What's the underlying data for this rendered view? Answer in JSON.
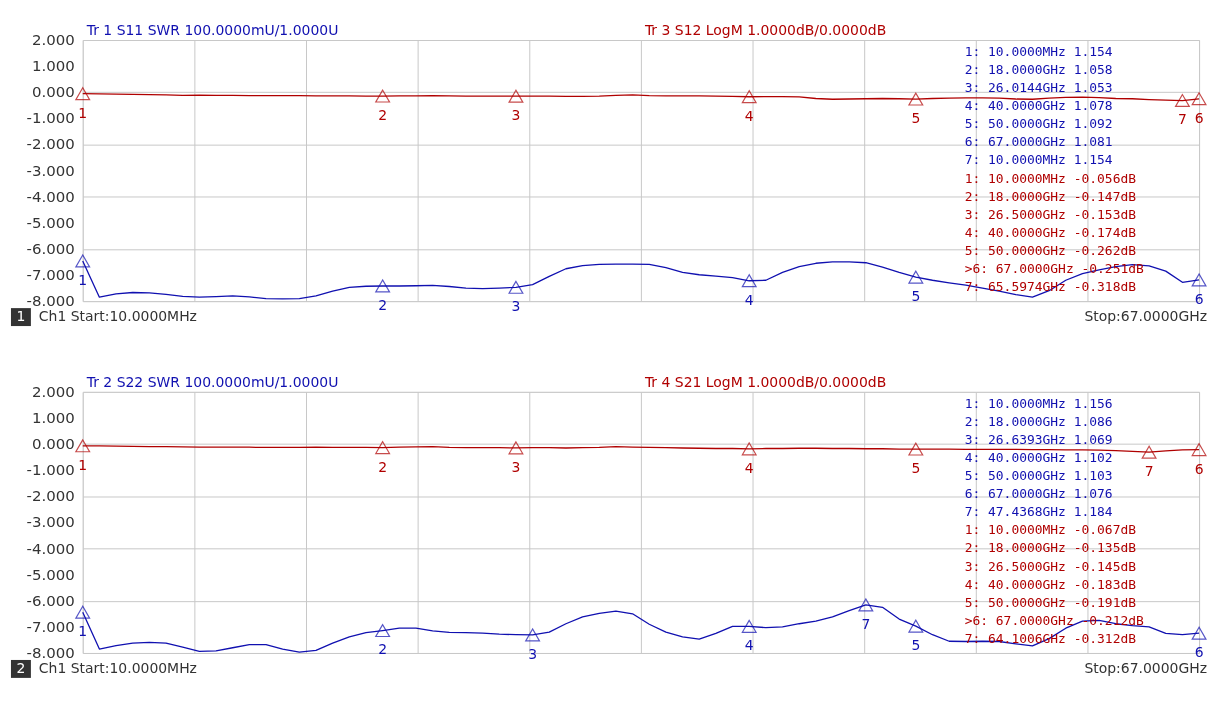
{
  "chart_data": [
    {
      "type": "line",
      "subtitle": "1",
      "xlabel": "Ch1  Start:10.0000MHz",
      "categories": [
        null,
        null,
        null,
        null,
        null,
        null,
        null,
        null,
        null,
        null,
        null,
        null,
        null,
        null,
        null,
        null,
        null,
        null,
        null,
        null,
        null,
        null,
        null,
        null,
        null,
        null,
        null,
        null,
        null,
        null,
        null,
        null,
        null,
        null,
        null,
        null,
        null,
        null,
        null,
        null,
        null,
        null,
        null,
        null,
        null,
        null,
        null,
        null,
        null,
        null,
        null,
        null,
        null,
        null,
        null,
        null,
        null,
        null,
        null,
        null,
        null,
        null,
        null,
        null,
        null,
        null,
        null,
        null
      ],
      "ylim": [
        -8,
        2
      ],
      "yticks": [
        {
          "value": 2,
          "label": "2.000"
        },
        {
          "value": 1,
          "label": "1.000"
        },
        {
          "value": 0,
          "label": "0.000"
        },
        {
          "value": -1,
          "label": "-1.000"
        },
        {
          "value": -2,
          "label": "-2.000"
        },
        {
          "value": -3,
          "label": "-3.000"
        },
        {
          "value": -4,
          "label": "-4.000"
        },
        {
          "value": -5,
          "label": "-5.000"
        },
        {
          "value": -6,
          "label": "-6.000"
        },
        {
          "value": -7,
          "label": "-7.000"
        },
        {
          "value": -8,
          "label": "-8.000"
        }
      ],
      "tick_labels": "y",
      "grid": true,
      "series": [
        {
          "name": "Tr 1  S11 SWR 100.0000mU/1.0000U",
          "color": "#1010b0",
          "values": [
            -6.46,
            -7.85,
            -7.72,
            -7.67,
            -7.68,
            -7.74,
            -7.82,
            -7.85,
            -7.83,
            -7.8,
            -7.84,
            -7.9,
            -7.91,
            -7.9,
            -7.8,
            -7.62,
            -7.47,
            -7.43,
            -7.42,
            -7.42,
            -7.41,
            -7.4,
            -7.44,
            -7.5,
            -7.52,
            -7.5,
            -7.47,
            -7.37,
            -7.05,
            -6.76,
            -6.64,
            -6.59,
            -6.58,
            -6.58,
            -6.59,
            -6.72,
            -6.9,
            -6.99,
            -7.04,
            -7.1,
            -7.22,
            -7.2,
            -6.9,
            -6.68,
            -6.55,
            -6.5,
            -6.5,
            -6.53,
            -6.7,
            -6.9,
            -7.08,
            -7.2,
            -7.3,
            -7.39,
            -7.5,
            -7.62,
            -7.75,
            -7.85,
            -7.6,
            -7.2,
            -6.95,
            -6.8,
            -6.68,
            -6.6,
            -6.65,
            -6.85,
            -7.28,
            -7.19
          ]
        },
        {
          "name": "Tr 3  S12 LogM 1.0000dB/0.0000dB",
          "color": "#b00000",
          "values": [
            -0.056,
            -0.06,
            -0.07,
            -0.08,
            -0.09,
            -0.1,
            -0.12,
            -0.11,
            -0.12,
            -0.12,
            -0.13,
            -0.13,
            -0.13,
            -0.13,
            -0.14,
            -0.14,
            -0.14,
            -0.15,
            -0.147,
            -0.14,
            -0.14,
            -0.13,
            -0.14,
            -0.15,
            -0.15,
            -0.15,
            -0.153,
            -0.15,
            -0.15,
            -0.16,
            -0.16,
            -0.15,
            -0.12,
            -0.1,
            -0.13,
            -0.14,
            -0.14,
            -0.14,
            -0.15,
            -0.16,
            -0.174,
            -0.17,
            -0.17,
            -0.18,
            -0.24,
            -0.27,
            -0.26,
            -0.25,
            -0.24,
            -0.25,
            -0.262,
            -0.24,
            -0.23,
            -0.22,
            -0.22,
            -0.23,
            -0.26,
            -0.27,
            -0.23,
            -0.2,
            -0.19,
            -0.21,
            -0.24,
            -0.25,
            -0.28,
            -0.3,
            -0.318,
            -0.251
          ]
        },
        {
          "type": "scatter",
          "marker": "triangle",
          "color": "#b00000",
          "values": [
            -0.056,
            null,
            null,
            null,
            null,
            null,
            null,
            null,
            null,
            null,
            null,
            null,
            null,
            null,
            null,
            null,
            null,
            null,
            -0.147,
            null,
            null,
            null,
            null,
            null,
            null,
            null,
            -0.153,
            null,
            null,
            null,
            null,
            null,
            null,
            null,
            null,
            null,
            null,
            null,
            null,
            null,
            -0.174,
            null,
            null,
            null,
            null,
            null,
            null,
            null,
            null,
            null,
            -0.262,
            null,
            null,
            null,
            null,
            null,
            null,
            null,
            null,
            null,
            null,
            null,
            null,
            null,
            null,
            null,
            -0.318,
            -0.251
          ]
        },
        {
          "type": "scatter",
          "marker": "triangle",
          "color": "#1010b0",
          "values": [
            -6.46,
            null,
            null,
            null,
            null,
            null,
            null,
            null,
            null,
            null,
            null,
            null,
            null,
            null,
            null,
            null,
            null,
            null,
            -7.42,
            null,
            null,
            null,
            null,
            null,
            null,
            null,
            -7.47,
            null,
            null,
            null,
            null,
            null,
            null,
            null,
            null,
            null,
            null,
            null,
            null,
            null,
            -7.22,
            null,
            null,
            null,
            null,
            null,
            null,
            null,
            null,
            null,
            -7.08,
            null,
            null,
            null,
            null,
            null,
            null,
            null,
            null,
            null,
            null,
            null,
            null,
            null,
            null,
            null,
            null,
            -7.19
          ]
        }
      ],
      "annotations": [
        "1:  10.0000MHz  1.154",
        "2:  18.0000GHz  1.058",
        "3:  26.0144GHz  1.053",
        "4:  40.0000GHz  1.078",
        "5:  50.0000GHz  1.092",
        "6:  67.0000GHz  1.081",
        "7:  10.0000MHz  1.154",
        "1:  10.0000MHz  -0.056dB",
        "2:  18.0000GHz  -0.147dB",
        "3:  26.5000GHz  -0.153dB",
        "4:  40.0000GHz  -0.174dB",
        "5:  50.0000GHz  -0.262dB",
        ">6:  67.0000GHz  -0.251dB",
        "7:  65.5974GHz  -0.318dB",
        "Stop:67.0000GHz",
        {
          "text": "1",
          "y": -0.056
        },
        {
          "text": "2",
          "y": -0.147
        },
        {
          "text": "3",
          "y": -0.153
        },
        {
          "text": "4",
          "y": -0.174
        },
        {
          "text": "5",
          "y": -0.262
        },
        {
          "text": "7",
          "y": -0.318
        },
        {
          "text": "6",
          "y": -0.251
        },
        {
          "text": "1",
          "y": -6.46
        },
        {
          "text": "2",
          "y": -7.42
        },
        {
          "text": "3",
          "y": -7.47
        },
        {
          "text": "4",
          "y": -7.22
        },
        {
          "text": "5",
          "y": -7.08
        },
        {
          "text": "6",
          "y": -7.19
        }
      ]
    },
    {
      "type": "line",
      "subtitle": "2",
      "xlabel": "Ch1  Start:10.0000MHz",
      "categories": [
        null,
        null,
        null,
        null,
        null,
        null,
        null,
        null,
        null,
        null,
        null,
        null,
        null,
        null,
        null,
        null,
        null,
        null,
        null,
        null,
        null,
        null,
        null,
        null,
        null,
        null,
        null,
        null,
        null,
        null,
        null,
        null,
        null,
        null,
        null,
        null,
        null,
        null,
        null,
        null,
        null,
        null,
        null,
        null,
        null,
        null,
        null,
        null,
        null,
        null,
        null,
        null,
        null,
        null,
        null,
        null,
        null,
        null,
        null,
        null,
        null,
        null,
        null,
        null,
        null,
        null,
        null,
        null
      ],
      "ylim": [
        -8,
        2
      ],
      "yticks": [
        {
          "value": 2,
          "label": "2.000"
        },
        {
          "value": 1,
          "label": "1.000"
        },
        {
          "value": 0,
          "label": "0.000"
        },
        {
          "value": -1,
          "label": "-1.000"
        },
        {
          "value": -2,
          "label": "-2.000"
        },
        {
          "value": -3,
          "label": "-3.000"
        },
        {
          "value": -4,
          "label": "-4.000"
        },
        {
          "value": -5,
          "label": "-5.000"
        },
        {
          "value": -6,
          "label": "-6.000"
        },
        {
          "value": -7,
          "label": "-7.000"
        },
        {
          "value": -8,
          "label": "-8.000"
        }
      ],
      "tick_labels": "y",
      "grid": true,
      "series": [
        {
          "name": "Tr 2  S22 SWR 100.0000mU/1.0000U",
          "color": "#1010b0",
          "values": [
            -6.44,
            -7.85,
            -7.72,
            -7.62,
            -7.59,
            -7.62,
            -7.78,
            -7.94,
            -7.92,
            -7.8,
            -7.68,
            -7.68,
            -7.85,
            -7.97,
            -7.9,
            -7.62,
            -7.38,
            -7.22,
            -7.14,
            -7.05,
            -7.05,
            -7.15,
            -7.21,
            -7.22,
            -7.24,
            -7.28,
            -7.3,
            -7.31,
            -7.2,
            -6.88,
            -6.62,
            -6.48,
            -6.4,
            -6.5,
            -6.9,
            -7.2,
            -7.38,
            -7.47,
            -7.25,
            -6.98,
            -6.98,
            -7.03,
            -7.0,
            -6.88,
            -6.78,
            -6.62,
            -6.38,
            -6.16,
            -6.25,
            -6.7,
            -6.97,
            -7.3,
            -7.55,
            -7.56,
            -7.55,
            -7.56,
            -7.65,
            -7.73,
            -7.45,
            -7.05,
            -6.78,
            -6.75,
            -6.88,
            -6.95,
            -7.0,
            -7.25,
            -7.3,
            -7.24
          ]
        },
        {
          "name": "Tr 4  S21 LogM 1.0000dB/0.0000dB",
          "color": "#b00000",
          "values": [
            -0.067,
            -0.07,
            -0.08,
            -0.09,
            -0.1,
            -0.1,
            -0.11,
            -0.12,
            -0.12,
            -0.12,
            -0.12,
            -0.13,
            -0.13,
            -0.13,
            -0.12,
            -0.13,
            -0.13,
            -0.13,
            -0.135,
            -0.12,
            -0.11,
            -0.1,
            -0.13,
            -0.14,
            -0.14,
            -0.14,
            -0.145,
            -0.14,
            -0.14,
            -0.15,
            -0.14,
            -0.13,
            -0.1,
            -0.12,
            -0.13,
            -0.14,
            -0.15,
            -0.16,
            -0.17,
            -0.17,
            -0.183,
            -0.17,
            -0.17,
            -0.16,
            -0.16,
            -0.17,
            -0.17,
            -0.18,
            -0.18,
            -0.19,
            -0.191,
            -0.19,
            -0.19,
            -0.2,
            -0.2,
            -0.2,
            -0.2,
            -0.21,
            -0.21,
            -0.22,
            -0.22,
            -0.23,
            -0.25,
            -0.28,
            -0.312,
            -0.26,
            -0.22,
            -0.212
          ]
        },
        {
          "type": "scatter",
          "marker": "triangle",
          "color": "#b00000",
          "values": [
            -0.067,
            null,
            null,
            null,
            null,
            null,
            null,
            null,
            null,
            null,
            null,
            null,
            null,
            null,
            null,
            null,
            null,
            null,
            -0.135,
            null,
            null,
            null,
            null,
            null,
            null,
            null,
            -0.145,
            null,
            null,
            null,
            null,
            null,
            null,
            null,
            null,
            null,
            null,
            null,
            null,
            null,
            -0.183,
            null,
            null,
            null,
            null,
            null,
            null,
            null,
            null,
            null,
            -0.191,
            null,
            null,
            null,
            null,
            null,
            null,
            null,
            null,
            null,
            null,
            null,
            null,
            null,
            -0.312,
            null,
            null,
            -0.212
          ]
        },
        {
          "type": "scatter",
          "marker": "triangle",
          "color": "#1010b0",
          "values": [
            -6.44,
            null,
            null,
            null,
            null,
            null,
            null,
            null,
            null,
            null,
            null,
            null,
            null,
            null,
            null,
            null,
            null,
            null,
            -7.14,
            null,
            null,
            null,
            null,
            null,
            null,
            null,
            null,
            -7.31,
            null,
            null,
            null,
            null,
            null,
            null,
            null,
            null,
            null,
            null,
            null,
            null,
            -6.98,
            null,
            null,
            null,
            null,
            null,
            null,
            -6.16,
            null,
            null,
            -6.97,
            null,
            null,
            null,
            null,
            null,
            null,
            null,
            null,
            null,
            null,
            null,
            null,
            null,
            null,
            null,
            null,
            -7.24
          ]
        }
      ],
      "annotations": [
        "1:  10.0000MHz  1.156",
        "2:  18.0000GHz  1.086",
        "3:  26.6393GHz  1.069",
        "4:  40.0000GHz  1.102",
        "5:  50.0000GHz  1.103",
        "6:  67.0000GHz  1.076",
        "7:  47.4368GHz  1.184",
        "1:  10.0000MHz  -0.067dB",
        "2:  18.0000GHz  -0.135dB",
        "3:  26.5000GHz  -0.145dB",
        "4:  40.0000GHz  -0.183dB",
        "5:  50.0000GHz  -0.191dB",
        ">6:  67.0000GHz  -0.212dB",
        "7:  64.1006GHz  -0.312dB",
        "Stop:67.0000GHz",
        {
          "text": "1",
          "y": -0.067
        },
        {
          "text": "2",
          "y": -0.135
        },
        {
          "text": "3",
          "y": -0.145
        },
        {
          "text": "4",
          "y": -0.183
        },
        {
          "text": "5",
          "y": -0.191
        },
        {
          "text": "7",
          "y": -0.312
        },
        {
          "text": "6",
          "y": -0.212
        },
        {
          "text": "1",
          "y": -6.44
        },
        {
          "text": "2",
          "y": -7.14
        },
        {
          "text": "3",
          "y": -7.31
        },
        {
          "text": "4",
          "y": -6.98
        },
        {
          "text": "7",
          "y": -6.16
        },
        {
          "text": "5",
          "y": -6.97
        },
        {
          "text": "6",
          "y": -7.24
        }
      ]
    }
  ]
}
